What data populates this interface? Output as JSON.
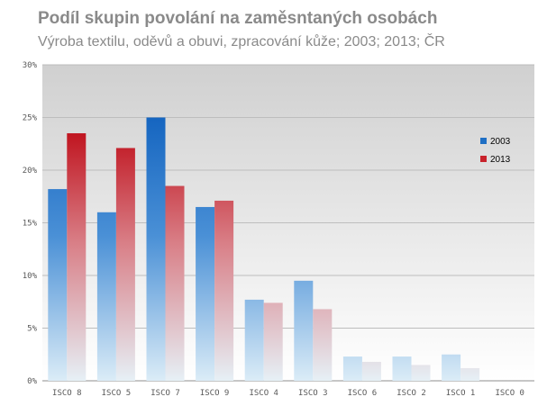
{
  "chart_data": {
    "type": "bar",
    "title": "Podíl skupin povolání na zaměsntaných osobách",
    "subtitle": "Výroba textilu, oděvů a obuvi, zpracování kůže; 2003; 2013; ČR",
    "categories": [
      "ISCO 8",
      "ISCO 5",
      "ISCO 7",
      "ISCO 9",
      "ISCO 4",
      "ISCO 3",
      "ISCO 6",
      "ISCO 2",
      "ISCO 1",
      "ISCO 0"
    ],
    "series": [
      {
        "name": "2003",
        "values": [
          18.2,
          16.0,
          25.0,
          16.5,
          7.7,
          9.5,
          2.3,
          2.3,
          2.5,
          0
        ],
        "color": "#1f6fc4"
      },
      {
        "name": "2013",
        "values": [
          23.5,
          22.1,
          18.5,
          17.1,
          7.4,
          6.8,
          1.8,
          1.5,
          1.2,
          0
        ],
        "color": "#c8222b"
      }
    ],
    "ylim": [
      0,
      30
    ],
    "yticks": [
      "0%",
      "5%",
      "10%",
      "15%",
      "20%",
      "25%",
      "30%"
    ],
    "grid": true,
    "legend_position": "right"
  }
}
